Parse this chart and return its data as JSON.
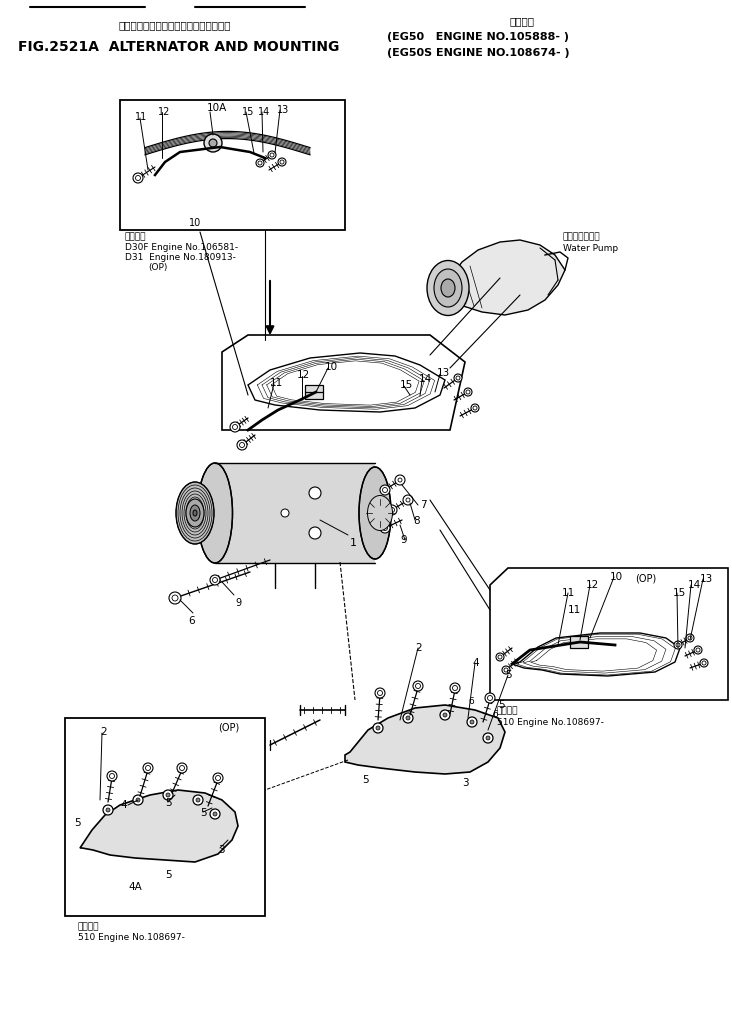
{
  "title_jp": "オルタネータ　および　マウンティング",
  "title_right_jp": "適用号機",
  "title_main": "FIG.2521A  ALTERNATOR AND MOUNTING",
  "title_eg50": "(EG50   ENGINE NO.105888- )",
  "title_eg50s": "(EG50S ENGINE NO.108674- )",
  "note_d30f": "D30F Engine No.106581-",
  "note_d31": "D31  Engine No.180913-",
  "note_op": "(OP)",
  "note_510": "510 Engine No.108697-",
  "note_applic_jp": "適用号機",
  "water_pump_jp": "ウォータポンプ",
  "water_pump_en": "Water Pump",
  "bg": "#ffffff",
  "lc": "#000000"
}
